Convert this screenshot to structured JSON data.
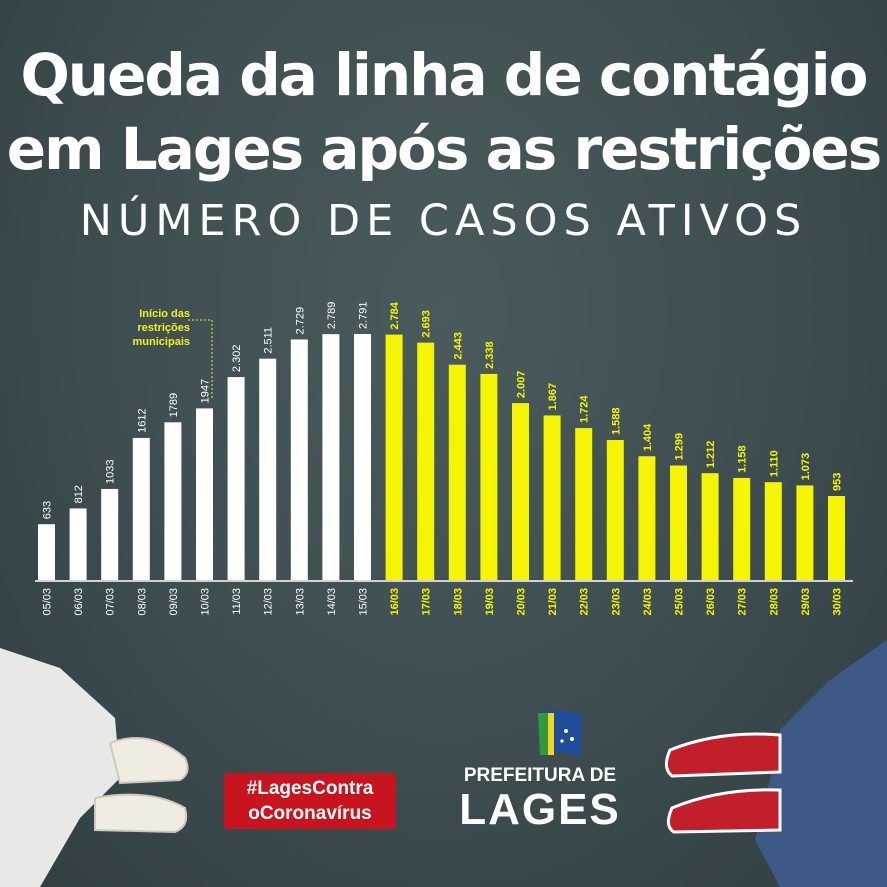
{
  "title": {
    "line1": "Queda da linha de contágio",
    "line2": "em Lages após as restrições"
  },
  "subtitle": "NÚMERO DE CASOS ATIVOS",
  "annotation": {
    "line1": "Início das",
    "line2": "restrições",
    "line3": "municipais"
  },
  "hashtag": {
    "line1": "#LagesContra",
    "line2": "oCoronavírus"
  },
  "logo": {
    "prefeitura": "PREFEITURA DE",
    "lages": "LAGES"
  },
  "colors": {
    "before": "#ffffff",
    "after": "#f5f500",
    "background": "#3d4d50",
    "hashtag_bg": "#c8141e"
  },
  "chart_data": {
    "type": "bar",
    "title": "NÚMERO DE CASOS ATIVOS",
    "categories": [
      "05/03",
      "06/03",
      "07/03",
      "08/03",
      "09/03",
      "10/03",
      "11/03",
      "12/03",
      "13/03",
      "14/03",
      "15/03",
      "16/03",
      "17/03",
      "18/03",
      "19/03",
      "20/03",
      "21/03",
      "22/03",
      "23/03",
      "24/03",
      "25/03",
      "26/03",
      "27/03",
      "28/03",
      "29/03",
      "30/03"
    ],
    "values": [
      633,
      812,
      1033,
      1612,
      1789,
      1947,
      2302,
      2511,
      2729,
      2789,
      2791,
      2784,
      2693,
      2443,
      2338,
      2007,
      1867,
      1724,
      1588,
      1404,
      1299,
      1212,
      1158,
      1110,
      1073,
      953
    ],
    "labels": [
      "633",
      "812",
      "1033",
      "1612",
      "1789",
      "1947",
      "2.302",
      "2.511",
      "2.729",
      "2.789",
      "2.791",
      "2.784",
      "2.693",
      "2.443",
      "2.338",
      "2.007",
      "1.867",
      "1.724",
      "1.588",
      "1.404",
      "1.299",
      "1.212",
      "1.158",
      "1.110",
      "1.073",
      "953"
    ],
    "highlight_from": "16/03",
    "ylim": [
      0,
      2791
    ],
    "grid": false,
    "xlabel": "",
    "ylabel": ""
  }
}
